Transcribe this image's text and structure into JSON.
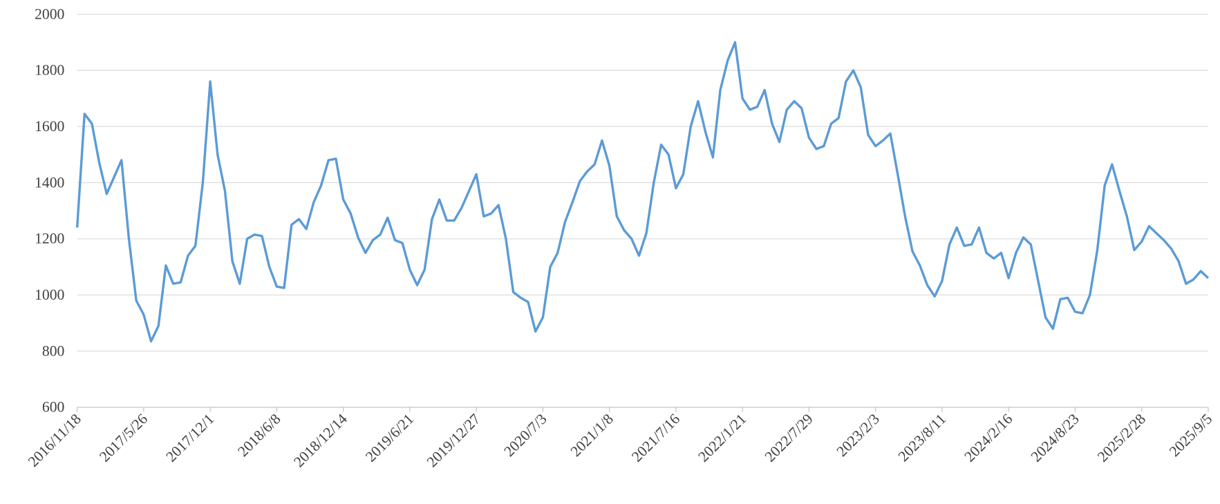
{
  "chart_data": {
    "type": "line",
    "categories": [
      "2016/11/18",
      null,
      null,
      null,
      null,
      null,
      null,
      null,
      null,
      "2017/5/26",
      null,
      null,
      null,
      null,
      null,
      null,
      null,
      null,
      "2017/12/1",
      null,
      null,
      null,
      null,
      null,
      null,
      null,
      null,
      "2018/6/8",
      null,
      null,
      null,
      null,
      null,
      null,
      null,
      null,
      "2018/12/14",
      null,
      null,
      null,
      null,
      null,
      null,
      null,
      null,
      "2019/6/21",
      null,
      null,
      null,
      null,
      null,
      null,
      null,
      null,
      "2019/12/27",
      null,
      null,
      null,
      null,
      null,
      null,
      null,
      null,
      "2020/7/3",
      null,
      null,
      null,
      null,
      null,
      null,
      null,
      null,
      "2021/1/8",
      null,
      null,
      null,
      null,
      null,
      null,
      null,
      null,
      "2021/7/16",
      null,
      null,
      null,
      null,
      null,
      null,
      null,
      null,
      "2022/1/21",
      null,
      null,
      null,
      null,
      null,
      null,
      null,
      null,
      "2022/7/29",
      null,
      null,
      null,
      null,
      null,
      null,
      null,
      null,
      "2023/2/3",
      null,
      null,
      null,
      null,
      null,
      null,
      null,
      null,
      "2023/8/11",
      null,
      null,
      null,
      null,
      null,
      null,
      null,
      null,
      "2024/2/16",
      null,
      null,
      null,
      null,
      null,
      null,
      null,
      null,
      "2024/8/23",
      null,
      null,
      null,
      null,
      null,
      null,
      null,
      null,
      "2025/2/28",
      null,
      null,
      null,
      null,
      null,
      null,
      null,
      null,
      "2025/9/5"
    ],
    "series": [
      {
        "color": "#5b9bd5",
        "values": [
          1240,
          1645,
          1610,
          1470,
          1360,
          1420,
          1480,
          1200,
          980,
          930,
          835,
          890,
          1105,
          1040,
          1045,
          1140,
          1175,
          1400,
          1760,
          1500,
          1370,
          1120,
          1040,
          1200,
          1215,
          1210,
          1100,
          1030,
          1025,
          1250,
          1270,
          1235,
          1330,
          1390,
          1480,
          1485,
          1340,
          1290,
          1205,
          1150,
          1195,
          1215,
          1275,
          1195,
          1185,
          1090,
          1035,
          1090,
          1270,
          1340,
          1265,
          1265,
          1310,
          1370,
          1430,
          1280,
          1290,
          1320,
          1200,
          1010,
          990,
          975,
          870,
          920,
          1100,
          1150,
          1260,
          1330,
          1405,
          1440,
          1465,
          1550,
          1460,
          1280,
          1230,
          1200,
          1140,
          1220,
          1400,
          1535,
          1500,
          1380,
          1430,
          1600,
          1690,
          1580,
          1490,
          1730,
          1835,
          1900,
          1700,
          1660,
          1670,
          1730,
          1610,
          1545,
          1660,
          1690,
          1665,
          1560,
          1520,
          1530,
          1610,
          1630,
          1760,
          1800,
          1740,
          1570,
          1530,
          1550,
          1575,
          1430,
          1280,
          1155,
          1105,
          1035,
          995,
          1050,
          1180,
          1240,
          1175,
          1180,
          1240,
          1150,
          1130,
          1150,
          1060,
          1150,
          1205,
          1180,
          1050,
          920,
          880,
          985,
          990,
          940,
          935,
          1000,
          1160,
          1390,
          1465,
          1370,
          1280,
          1160,
          1190,
          1245,
          1220,
          1195,
          1165,
          1120,
          1040,
          1055,
          1085,
          1060
        ]
      }
    ],
    "ylim": [
      600,
      2000
    ],
    "yticks": [
      600,
      800,
      1000,
      1200,
      1400,
      1600,
      1800,
      2000
    ],
    "grid": true
  }
}
